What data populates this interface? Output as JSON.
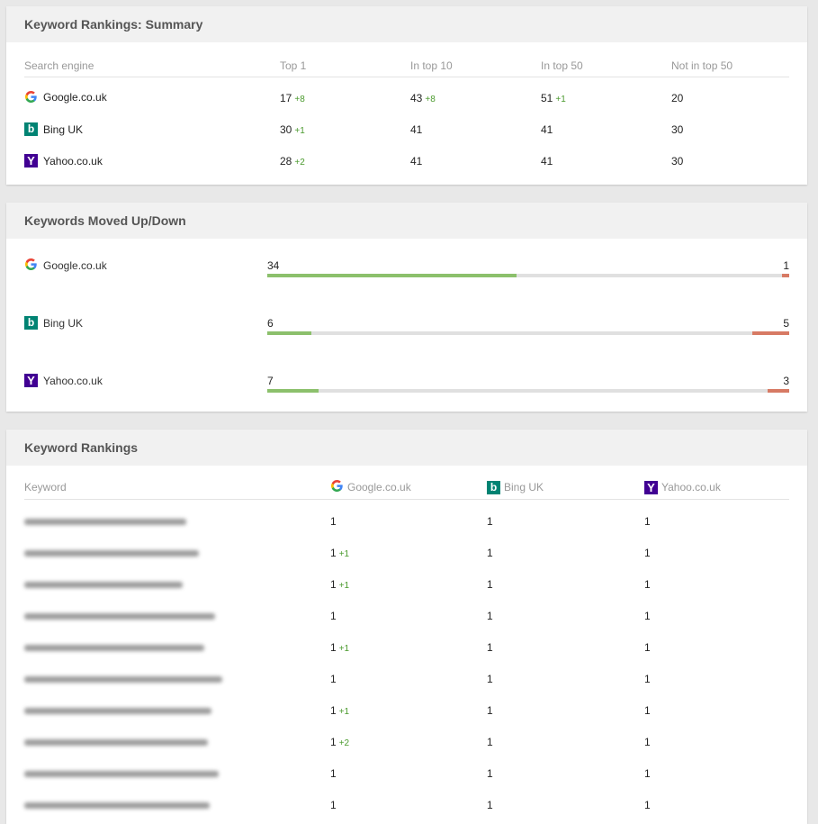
{
  "summary": {
    "title": "Keyword Rankings: Summary",
    "headers": [
      "Search engine",
      "Top 1",
      "In top 10",
      "In top 50",
      "Not in top 50"
    ],
    "rows": [
      {
        "engine": "Google.co.uk",
        "icon": "google-icon",
        "top1": "17",
        "top1_delta": "+8",
        "top10": "43",
        "top10_delta": "+8",
        "top50": "51",
        "top50_delta": "+1",
        "not50": "20"
      },
      {
        "engine": "Bing UK",
        "icon": "bing-icon",
        "top1": "30",
        "top1_delta": "+1",
        "top10": "41",
        "top10_delta": "",
        "top50": "41",
        "top50_delta": "",
        "not50": "30"
      },
      {
        "engine": "Yahoo.co.uk",
        "icon": "yahoo-icon",
        "top1": "28",
        "top1_delta": "+2",
        "top10": "41",
        "top10_delta": "",
        "top50": "41",
        "top50_delta": "",
        "not50": "30"
      }
    ]
  },
  "moved": {
    "title": "Keywords Moved Up/Down",
    "rows": [
      {
        "engine": "Google.co.uk",
        "icon": "google-icon",
        "up": "34",
        "down": "1",
        "up_fraction": 0.478,
        "down_fraction": 0.014
      },
      {
        "engine": "Bing UK",
        "icon": "bing-icon",
        "up": "6",
        "down": "5",
        "up_fraction": 0.084,
        "down_fraction": 0.07
      },
      {
        "engine": "Yahoo.co.uk",
        "icon": "yahoo-icon",
        "up": "7",
        "down": "3",
        "up_fraction": 0.098,
        "down_fraction": 0.042
      }
    ]
  },
  "rankings": {
    "title": "Keyword Rankings",
    "headers": {
      "keyword": "Keyword",
      "google": "Google.co.uk",
      "bing": "Bing UK",
      "yahoo": "Yahoo.co.uk"
    },
    "rows": [
      {
        "google": "1",
        "google_delta": "",
        "bing": "1",
        "yahoo": "1"
      },
      {
        "google": "1",
        "google_delta": "+1",
        "bing": "1",
        "yahoo": "1"
      },
      {
        "google": "1",
        "google_delta": "+1",
        "bing": "1",
        "yahoo": "1"
      },
      {
        "google": "1",
        "google_delta": "",
        "bing": "1",
        "yahoo": "1"
      },
      {
        "google": "1",
        "google_delta": "+1",
        "bing": "1",
        "yahoo": "1"
      },
      {
        "google": "1",
        "google_delta": "",
        "bing": "1",
        "yahoo": "1"
      },
      {
        "google": "1",
        "google_delta": "+1",
        "bing": "1",
        "yahoo": "1"
      },
      {
        "google": "1",
        "google_delta": "+2",
        "bing": "1",
        "yahoo": "1"
      },
      {
        "google": "1",
        "google_delta": "",
        "bing": "1",
        "yahoo": "1"
      },
      {
        "google": "1",
        "google_delta": "",
        "bing": "1",
        "yahoo": "1"
      }
    ]
  },
  "colors": {
    "up": "#8cc06c",
    "down": "#d77a64",
    "delta": "#4a9a2d",
    "bing": "#008373",
    "yahoo": "#410093"
  }
}
